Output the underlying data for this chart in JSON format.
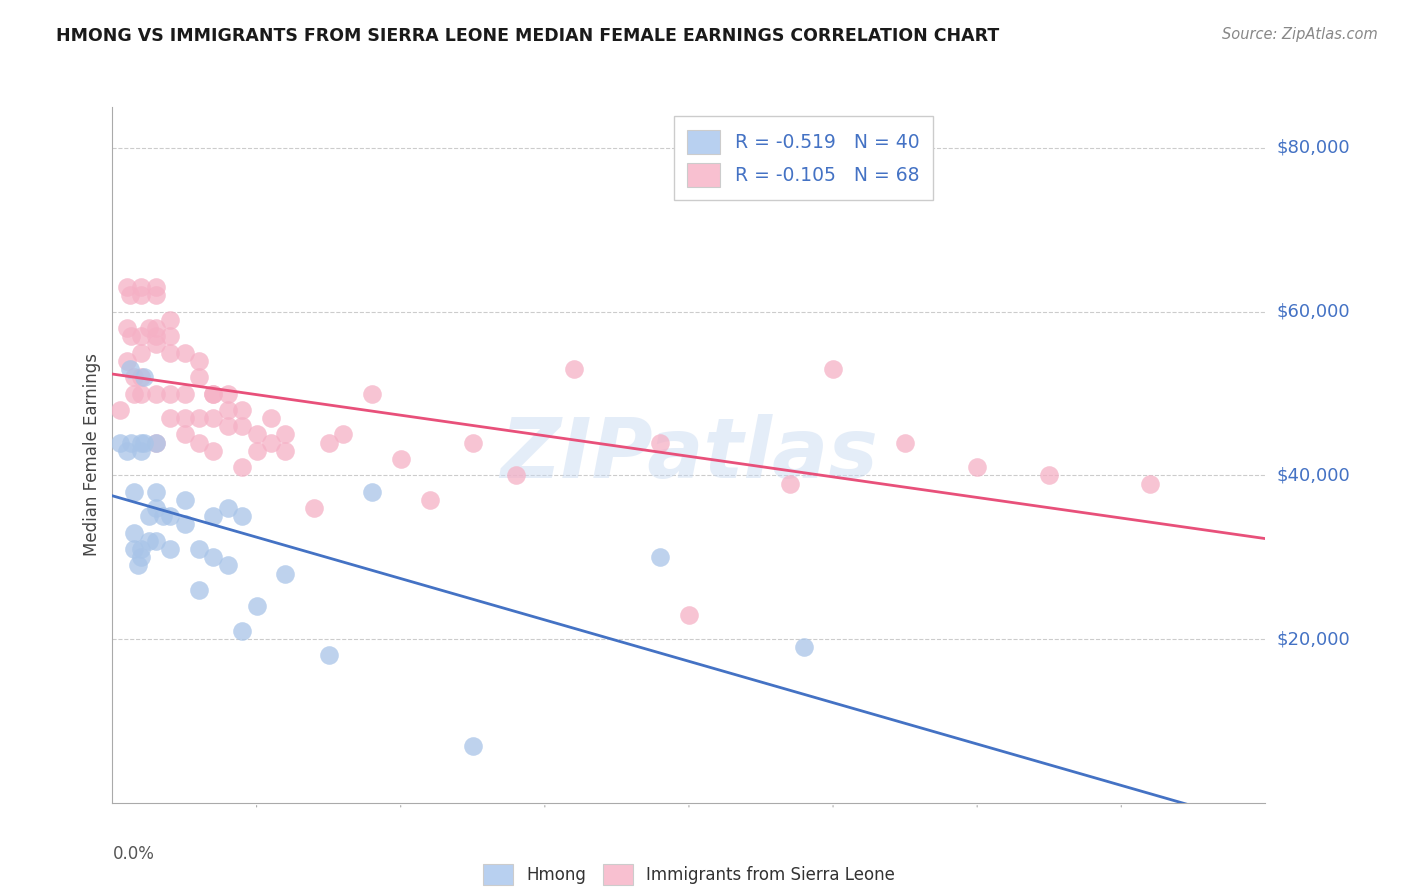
{
  "title": "HMONG VS IMMIGRANTS FROM SIERRA LEONE MEDIAN FEMALE EARNINGS CORRELATION CHART",
  "source": "Source: ZipAtlas.com",
  "ylabel": "Median Female Earnings",
  "ytick_labels": [
    "$20,000",
    "$40,000",
    "$60,000",
    "$80,000"
  ],
  "ytick_values": [
    20000,
    40000,
    60000,
    80000
  ],
  "ymin": 0,
  "ymax": 85000,
  "xmin": 0.0,
  "xmax": 0.08,
  "watermark": "ZIPatlas",
  "hmong_color": "#a8c4e8",
  "sierra_leone_color": "#f5b0c5",
  "trend_hmong_color": "#4472c4",
  "trend_sierra_leone_color": "#e8507a",
  "legend_patch_hmong": "#b8d0f0",
  "legend_patch_sierra": "#f8c0d0",
  "hmong_R": "-0.519",
  "hmong_N": "40",
  "sierra_leone_R": "-0.105",
  "sierra_leone_N": "68",
  "hmong_x": [
    0.0005,
    0.001,
    0.0012,
    0.0013,
    0.0015,
    0.0015,
    0.0015,
    0.0018,
    0.002,
    0.002,
    0.002,
    0.002,
    0.0022,
    0.0022,
    0.0025,
    0.0025,
    0.003,
    0.003,
    0.003,
    0.003,
    0.0035,
    0.004,
    0.004,
    0.005,
    0.005,
    0.006,
    0.006,
    0.007,
    0.007,
    0.008,
    0.008,
    0.009,
    0.009,
    0.01,
    0.012,
    0.015,
    0.018,
    0.025,
    0.038,
    0.048
  ],
  "hmong_y": [
    44000,
    43000,
    53000,
    44000,
    33000,
    38000,
    31000,
    29000,
    44000,
    43000,
    31000,
    30000,
    52000,
    44000,
    35000,
    32000,
    36000,
    44000,
    38000,
    32000,
    35000,
    35000,
    31000,
    37000,
    34000,
    31000,
    26000,
    35000,
    30000,
    36000,
    29000,
    21000,
    35000,
    24000,
    28000,
    18000,
    38000,
    7000,
    30000,
    19000
  ],
  "sierra_leone_x": [
    0.0005,
    0.001,
    0.001,
    0.001,
    0.0012,
    0.0013,
    0.0015,
    0.0015,
    0.002,
    0.002,
    0.002,
    0.002,
    0.002,
    0.002,
    0.0025,
    0.003,
    0.003,
    0.003,
    0.003,
    0.003,
    0.003,
    0.003,
    0.004,
    0.004,
    0.004,
    0.004,
    0.004,
    0.005,
    0.005,
    0.005,
    0.005,
    0.006,
    0.006,
    0.006,
    0.006,
    0.007,
    0.007,
    0.007,
    0.007,
    0.008,
    0.008,
    0.008,
    0.009,
    0.009,
    0.009,
    0.01,
    0.01,
    0.011,
    0.011,
    0.012,
    0.012,
    0.014,
    0.015,
    0.016,
    0.018,
    0.02,
    0.022,
    0.025,
    0.028,
    0.032,
    0.038,
    0.04,
    0.047,
    0.05,
    0.055,
    0.06,
    0.065,
    0.072
  ],
  "sierra_leone_y": [
    48000,
    63000,
    58000,
    54000,
    62000,
    57000,
    52000,
    50000,
    63000,
    62000,
    57000,
    55000,
    52000,
    50000,
    58000,
    63000,
    62000,
    58000,
    57000,
    56000,
    50000,
    44000,
    59000,
    57000,
    55000,
    50000,
    47000,
    55000,
    50000,
    47000,
    45000,
    54000,
    52000,
    47000,
    44000,
    50000,
    50000,
    47000,
    43000,
    50000,
    48000,
    46000,
    48000,
    46000,
    41000,
    45000,
    43000,
    47000,
    44000,
    45000,
    43000,
    36000,
    44000,
    45000,
    50000,
    42000,
    37000,
    44000,
    40000,
    53000,
    44000,
    23000,
    39000,
    53000,
    44000,
    41000,
    40000,
    39000
  ]
}
